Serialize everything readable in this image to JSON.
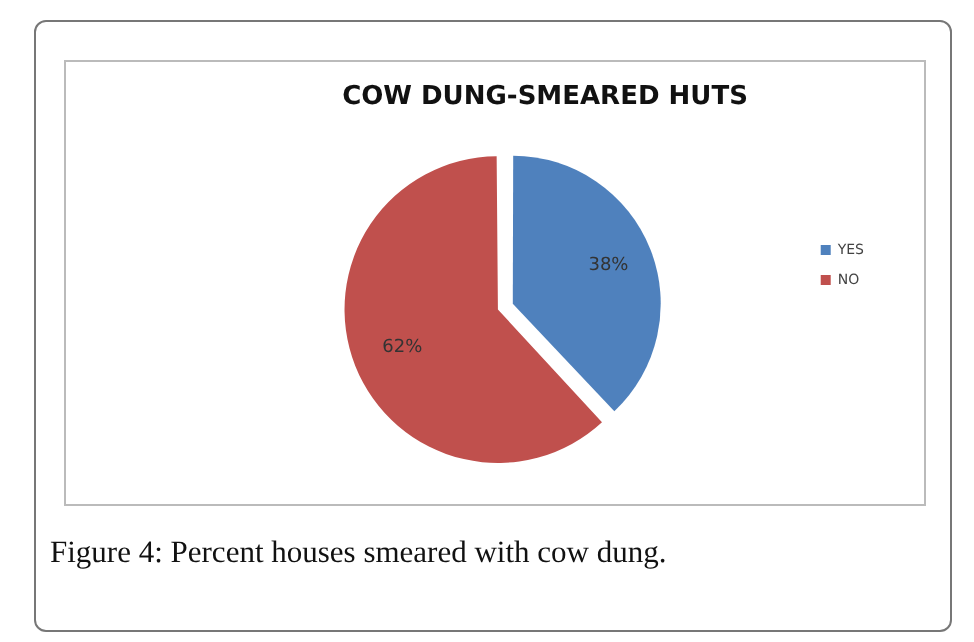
{
  "chart_data": {
    "type": "pie",
    "title": "COW DUNG-SMEARED HUTS",
    "categories": [
      "YES",
      "NO"
    ],
    "values": [
      38,
      62
    ],
    "colors": [
      "#4f81bd",
      "#c0504d"
    ],
    "value_labels": [
      "38%",
      "62%"
    ],
    "legend": "right",
    "annotations": [
      "Figure 4: Percent houses smeared with cow dung."
    ]
  }
}
